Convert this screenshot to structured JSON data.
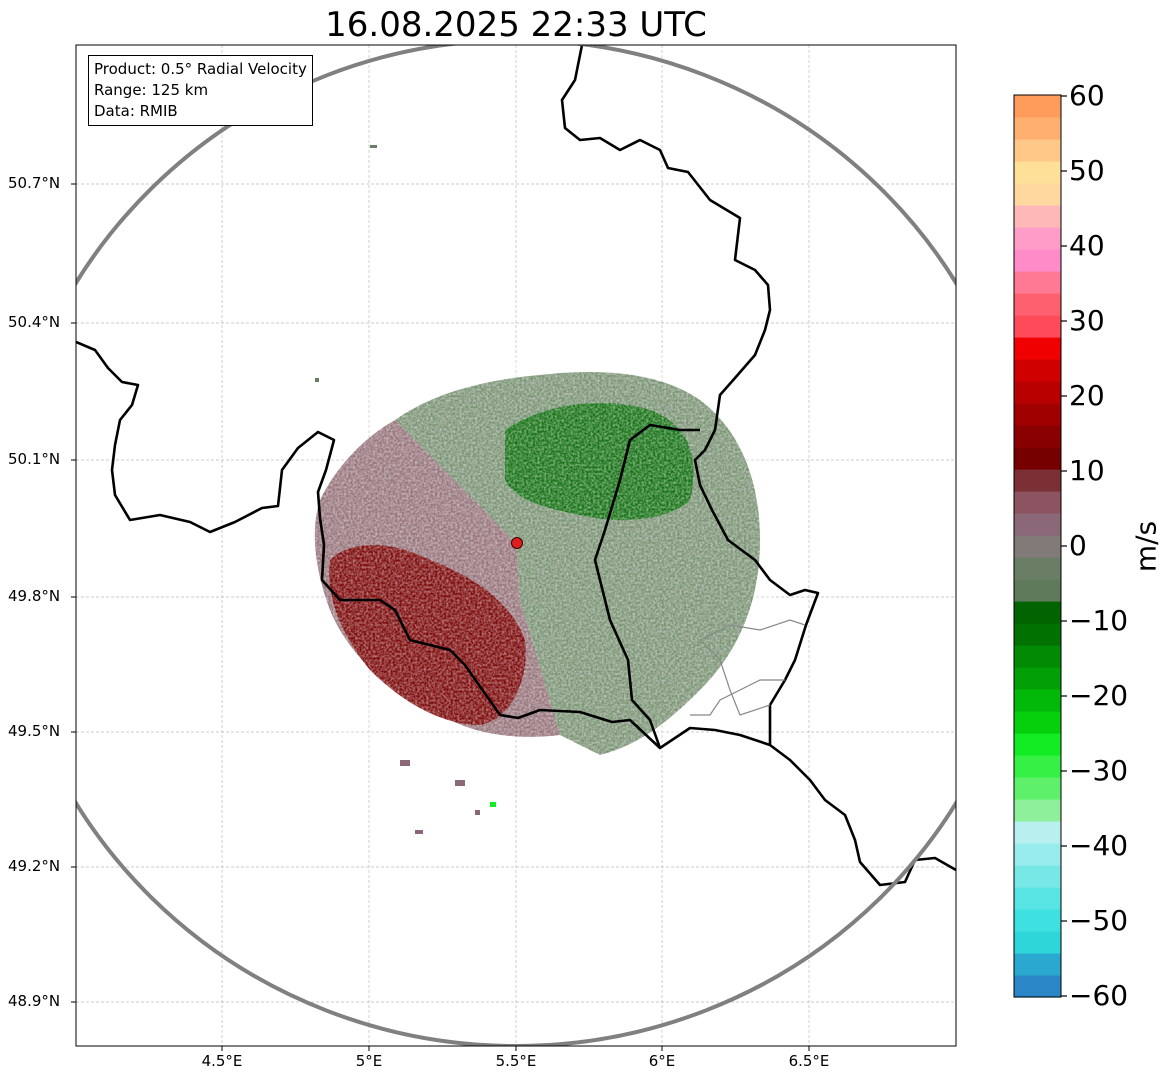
{
  "title": "16.08.2025 22:33 UTC",
  "info": {
    "product": "Product: 0.5° Radial Velocity",
    "range": "Range: 125 km",
    "data": "Data: RMIB"
  },
  "axes": {
    "lat_labels": [
      "50.7°N",
      "50.4°N",
      "50.1°N",
      "49.8°N",
      "49.5°N",
      "49.2°N",
      "48.9°N"
    ],
    "lon_labels": [
      "4.5°E",
      "5°E",
      "5.5°E",
      "6°E",
      "6.5°E"
    ]
  },
  "colorbar": {
    "unit": "m/s",
    "ticks": [
      "60",
      "50",
      "40",
      "30",
      "20",
      "10",
      "0",
      "−10",
      "−20",
      "−30",
      "−40",
      "−50",
      "−60"
    ],
    "range": [
      -60,
      60
    ],
    "colors": [
      "#2a86c6",
      "#2aa8d0",
      "#2ed6da",
      "#3ee0e0",
      "#58e4e2",
      "#78e8e6",
      "#98eced",
      "#b8f0f0",
      "#8ef09a",
      "#5ef06a",
      "#36f046",
      "#12ec22",
      "#06d00c",
      "#02b808",
      "#02a006",
      "#018a04",
      "#017202",
      "#016400",
      "#5e7a5a",
      "#6a7e66",
      "#827a78",
      "#8a6878",
      "#8c5460",
      "#7a3034",
      "#760000",
      "#8a0000",
      "#a00000",
      "#b80000",
      "#d00000",
      "#f00000",
      "#ff4a5a",
      "#ff6070",
      "#ff7894",
      "#ff8cc8",
      "#ff9cc8",
      "#ffb8b8",
      "#ffd8a0",
      "#ffe098",
      "#ffc888",
      "#ffb070",
      "#ff9c5c"
    ]
  },
  "colors": {
    "outbound_red": "#7a0000",
    "inbound_green": "#006b00",
    "near_zero_grey": "#7d7a6e",
    "radar_site": "#dd1f1f",
    "range_ring": "#808080",
    "border": "#000000"
  }
}
